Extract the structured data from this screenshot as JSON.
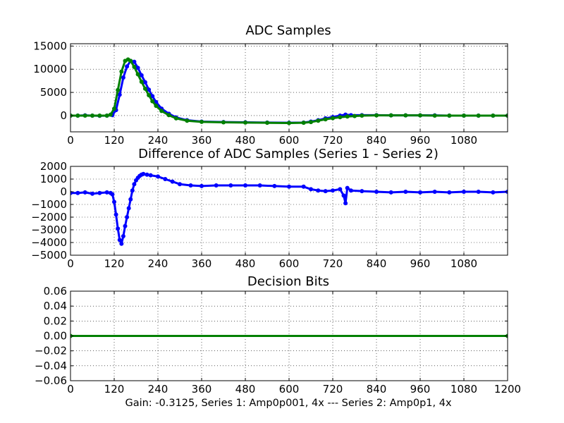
{
  "xlabel": "Gain: -0.3125, Series 1: Amp0p001, 4x --- Series 2: Amp0p1, 4x",
  "chart_data": [
    {
      "type": "line",
      "title": "ADC Samples",
      "xlim": [
        0,
        1200
      ],
      "ylim": [
        -3500,
        15500
      ],
      "grid": true,
      "x_ticks": [
        0,
        120,
        240,
        360,
        480,
        600,
        720,
        840,
        960,
        1080
      ],
      "y_ticks": [
        0,
        5000,
        10000,
        15000
      ],
      "series": [
        {
          "color": "#0000ff",
          "marker": "circle",
          "x": [
            0,
            20,
            40,
            60,
            80,
            100,
            115,
            125,
            135,
            145,
            155,
            165,
            175,
            185,
            195,
            205,
            215,
            225,
            235,
            250,
            270,
            290,
            320,
            360,
            420,
            480,
            540,
            600,
            640,
            660,
            680,
            700,
            720,
            740,
            755,
            770,
            800,
            840,
            880,
            920,
            960,
            1000,
            1040,
            1080,
            1120,
            1160,
            1200
          ],
          "y": [
            0,
            0,
            50,
            0,
            -50,
            0,
            100,
            1200,
            4500,
            8200,
            10600,
            11800,
            11600,
            10300,
            8700,
            7200,
            5600,
            4200,
            2900,
            1500,
            400,
            -400,
            -1000,
            -1300,
            -1400,
            -1450,
            -1500,
            -1550,
            -1500,
            -1300,
            -1000,
            -600,
            -300,
            0,
            200,
            100,
            100,
            100,
            50,
            50,
            50,
            50,
            0,
            0,
            0,
            0,
            0
          ]
        },
        {
          "color": "#008000",
          "marker": "circle",
          "x": [
            0,
            20,
            40,
            60,
            80,
            100,
            110,
            120,
            130,
            140,
            150,
            158,
            165,
            175,
            185,
            195,
            205,
            215,
            225,
            235,
            250,
            270,
            290,
            320,
            360,
            420,
            480,
            540,
            600,
            640,
            660,
            680,
            700,
            720,
            740,
            760,
            780,
            800,
            840,
            880,
            920,
            960,
            1000,
            1040,
            1080,
            1120,
            1160,
            1200
          ],
          "y": [
            0,
            0,
            0,
            0,
            0,
            0,
            200,
            1500,
            5500,
            9500,
            11800,
            12100,
            11800,
            10500,
            8900,
            7300,
            5800,
            4400,
            3100,
            2100,
            1000,
            100,
            -600,
            -1100,
            -1350,
            -1450,
            -1500,
            -1550,
            -1600,
            -1550,
            -1400,
            -1100,
            -800,
            -550,
            -350,
            -200,
            -100,
            0,
            50,
            50,
            50,
            50,
            0,
            0,
            0,
            0,
            0,
            0
          ]
        }
      ]
    },
    {
      "type": "line",
      "title": "Difference of ADC Samples (Series 1 - Series 2)",
      "xlim": [
        0,
        1200
      ],
      "ylim": [
        -5000,
        2000
      ],
      "grid": true,
      "x_ticks": [
        0,
        120,
        240,
        360,
        480,
        600,
        720,
        840,
        960,
        1080
      ],
      "y_ticks": [
        -5000,
        -4000,
        -3000,
        -2000,
        -1000,
        0,
        1000,
        2000
      ],
      "series": [
        {
          "color": "#0000ff",
          "marker": "circle",
          "x": [
            0,
            20,
            40,
            60,
            80,
            100,
            110,
            115,
            120,
            125,
            130,
            135,
            140,
            145,
            150,
            155,
            160,
            165,
            170,
            175,
            180,
            185,
            190,
            195,
            200,
            210,
            220,
            240,
            260,
            280,
            300,
            330,
            360,
            400,
            440,
            480,
            520,
            560,
            600,
            640,
            660,
            680,
            700,
            720,
            740,
            750,
            755,
            760,
            770,
            800,
            840,
            880,
            920,
            960,
            1000,
            1040,
            1080,
            1120,
            1160,
            1200
          ],
          "y": [
            -100,
            -100,
            -50,
            -150,
            -100,
            -50,
            -100,
            -200,
            -800,
            -1800,
            -2900,
            -3800,
            -4100,
            -3500,
            -2700,
            -2000,
            -1300,
            -600,
            100,
            600,
            900,
            1100,
            1250,
            1350,
            1400,
            1350,
            1300,
            1200,
            1000,
            800,
            600,
            500,
            450,
            500,
            500,
            500,
            500,
            450,
            400,
            400,
            200,
            100,
            50,
            100,
            200,
            -300,
            -900,
            300,
            100,
            50,
            0,
            -50,
            0,
            -50,
            0,
            -50,
            0,
            0,
            -50,
            0
          ]
        }
      ]
    },
    {
      "type": "line",
      "title": "Decision Bits",
      "xlim": [
        0,
        1200
      ],
      "ylim": [
        -0.06,
        0.06
      ],
      "grid": true,
      "x_ticks": [
        0,
        120,
        240,
        360,
        480,
        600,
        720,
        840,
        960,
        1080,
        1200
      ],
      "y_ticks": [
        -0.06,
        -0.04,
        -0.02,
        0.0,
        0.02,
        0.04,
        0.06
      ],
      "series": [
        {
          "color": "#008000",
          "marker": "circle",
          "x": [
            0,
            1200
          ],
          "y": [
            0,
            0
          ]
        }
      ]
    }
  ]
}
